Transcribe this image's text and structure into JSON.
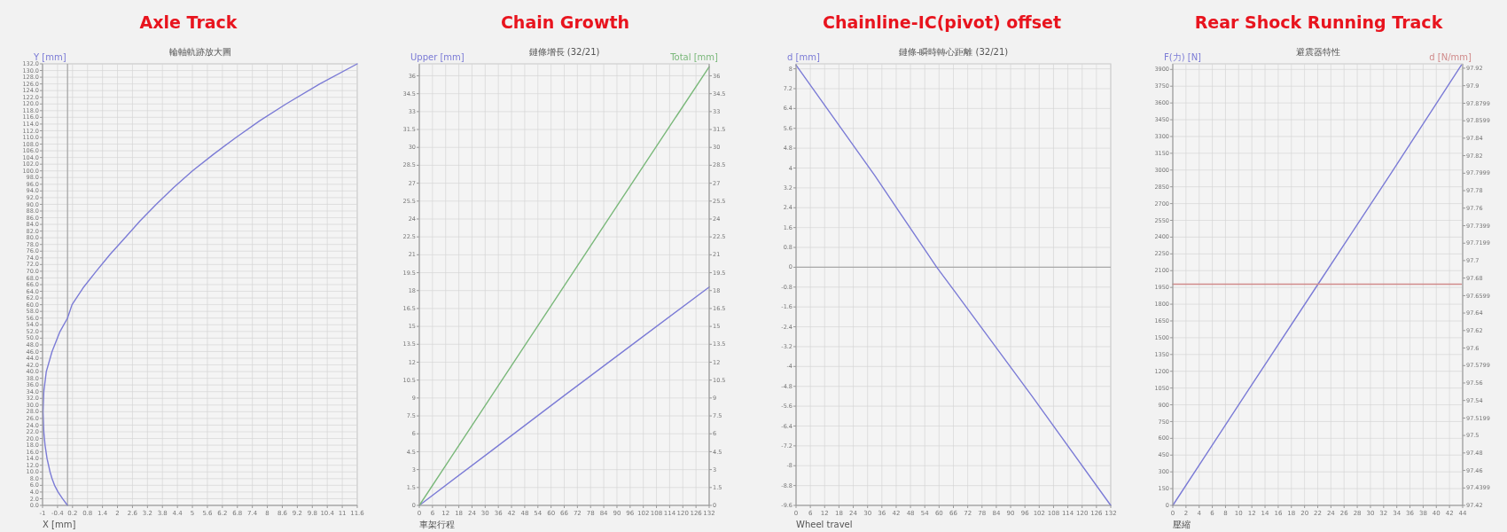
{
  "chart_data": [
    {
      "type": "line",
      "title": "Axle Track",
      "subtitle": "輪軸軌跡放大圖",
      "xlabel": "X [mm]",
      "ylabel": "Y [mm]",
      "grid": true,
      "xlim": [
        -1,
        11.6
      ],
      "xticks": [
        -1,
        -0.4,
        0.2,
        0.8,
        1.4,
        2,
        2.6,
        3.2,
        3.8,
        4.4,
        5,
        5.6,
        6.2,
        6.8,
        7.4,
        8,
        8.6,
        9.2,
        9.8,
        10.4,
        11,
        11.6
      ],
      "ylim": [
        0,
        132
      ],
      "yticks": [
        {
          "value": 0,
          "label": "0.0"
        },
        {
          "value": 2,
          "label": "2.0"
        },
        {
          "value": 4,
          "label": "4.0"
        },
        {
          "value": 6,
          "label": "6.0"
        },
        {
          "value": 8,
          "label": "8.0"
        },
        {
          "value": 10,
          "label": "10.0"
        },
        {
          "value": 12,
          "label": "12.0"
        },
        {
          "value": 14,
          "label": "14.0"
        },
        {
          "value": 16,
          "label": "16.0"
        },
        {
          "value": 18,
          "label": "18.0"
        },
        {
          "value": 20,
          "label": "20.0"
        },
        {
          "value": 22,
          "label": "22.0"
        },
        {
          "value": 24,
          "label": "24.0"
        },
        {
          "value": 26,
          "label": "26.0"
        },
        {
          "value": 28,
          "label": "28.0"
        },
        {
          "value": 30,
          "label": "30.0"
        },
        {
          "value": 32,
          "label": "32.0"
        },
        {
          "value": 34,
          "label": "34.0"
        },
        {
          "value": 36,
          "label": "36.0"
        },
        {
          "value": 38,
          "label": "38.0"
        },
        {
          "value": 40,
          "label": "40.0"
        },
        {
          "value": 42,
          "label": "42.0"
        },
        {
          "value": 44,
          "label": "44.0"
        },
        {
          "value": 46,
          "label": "46.0"
        },
        {
          "value": 48,
          "label": "48.0"
        },
        {
          "value": 50,
          "label": "50.0"
        },
        {
          "value": 52,
          "label": "52.0"
        },
        {
          "value": 54,
          "label": "54.0"
        },
        {
          "value": 56,
          "label": "56.0"
        },
        {
          "value": 58,
          "label": "58.0"
        },
        {
          "value": 60,
          "label": "60.0"
        },
        {
          "value": 62,
          "label": "62.0"
        },
        {
          "value": 64,
          "label": "64.0"
        },
        {
          "value": 66,
          "label": "66.0"
        },
        {
          "value": 68,
          "label": "68.0"
        },
        {
          "value": 70,
          "label": "70.0"
        },
        {
          "value": 72,
          "label": "72.0"
        },
        {
          "value": 74,
          "label": "74.0"
        },
        {
          "value": 76,
          "label": "76.0"
        },
        {
          "value": 78,
          "label": "78.0"
        },
        {
          "value": 80,
          "label": "80.0"
        },
        {
          "value": 82,
          "label": "82.0"
        },
        {
          "value": 84,
          "label": "84.0"
        },
        {
          "value": 86,
          "label": "86.0"
        },
        {
          "value": 88,
          "label": "88.0"
        },
        {
          "value": 90,
          "label": "90.0"
        },
        {
          "value": 92,
          "label": "92.0"
        },
        {
          "value": 94,
          "label": "94.0"
        },
        {
          "value": 96,
          "label": "96.0"
        },
        {
          "value": 98,
          "label": "98.0"
        },
        {
          "value": 100,
          "label": "100.0"
        },
        {
          "value": 102,
          "label": "102.0"
        },
        {
          "value": 104,
          "label": "104.0"
        },
        {
          "value": 106,
          "label": "106.0"
        },
        {
          "value": 108,
          "label": "108.0"
        },
        {
          "value": 110,
          "label": "110.0"
        },
        {
          "value": 112,
          "label": "112.0"
        },
        {
          "value": 114,
          "label": "114.0"
        },
        {
          "value": 116,
          "label": "116.0"
        },
        {
          "value": 118,
          "label": "118.0"
        },
        {
          "value": 120,
          "label": "120.0"
        },
        {
          "value": 122,
          "label": "122.0"
        },
        {
          "value": 124,
          "label": "124.0"
        },
        {
          "value": 126,
          "label": "126.0"
        },
        {
          "value": 128,
          "label": "128.0"
        },
        {
          "value": 130,
          "label": "130.0"
        },
        {
          "value": 132,
          "label": "132.0"
        }
      ],
      "ref_lines": [
        {
          "axis": "x",
          "value": 0,
          "color": "#a8a8a8"
        }
      ],
      "series": [
        {
          "color": "#7b7bd6",
          "x": [
            0,
            -0.2,
            -0.38,
            -0.52,
            -0.62,
            -0.7,
            -0.82,
            -0.9,
            -0.95,
            -0.98,
            -0.95,
            -0.85,
            -0.62,
            -0.3,
            0,
            0.18,
            0.62,
            1.15,
            1.7,
            2.3,
            2.9,
            3.55,
            4.25,
            5.0,
            5.85,
            6.75,
            7.7,
            8.75,
            10.1,
            11.6
          ],
          "values": [
            0,
            2,
            4,
            6,
            8,
            10,
            14,
            18,
            22,
            28,
            34,
            40,
            46,
            52,
            56,
            60,
            65,
            70,
            75,
            80,
            85,
            90,
            95,
            100,
            105,
            110,
            115,
            120,
            126,
            132
          ]
        }
      ]
    },
    {
      "type": "line",
      "title": "Chain Growth",
      "subtitle": "鏈條增長 (32/21)",
      "xlabel": "車架行程",
      "ylabel": "Upper [mm]",
      "y2label": "Total [mm]",
      "grid": true,
      "xlim": [
        0,
        132
      ],
      "xticks": [
        0,
        6,
        12,
        18,
        24,
        30,
        36,
        42,
        48,
        54,
        60,
        66,
        72,
        78,
        84,
        90,
        96,
        102,
        108,
        114,
        120,
        126,
        132
      ],
      "ylim": [
        0,
        37
      ],
      "yticks": [
        0,
        1.5,
        3,
        4.5,
        6,
        7.5,
        9,
        10.5,
        12,
        13.5,
        15,
        16.5,
        18,
        19.5,
        21,
        22.5,
        24,
        25.5,
        27,
        28.5,
        30,
        31.5,
        33,
        34.5,
        36
      ],
      "y2lim": [
        0,
        37
      ],
      "y2ticks": [
        0,
        1.5,
        3,
        4.5,
        6,
        7.5,
        9,
        10.5,
        12,
        13.5,
        15,
        16.5,
        18,
        19.5,
        21,
        22.5,
        24,
        25.5,
        27,
        28.5,
        30,
        31.5,
        33,
        34.5,
        36
      ],
      "series": [
        {
          "color": "#7b7bd6",
          "x": [
            0,
            33,
            66,
            99,
            132
          ],
          "values": [
            0,
            4.6,
            9.2,
            13.75,
            18.3
          ]
        },
        {
          "color": "#7ab87a",
          "axis": "y2",
          "x": [
            0,
            33,
            66,
            99,
            132
          ],
          "values": [
            0,
            9.2,
            18.4,
            27.6,
            36.75
          ]
        }
      ]
    },
    {
      "type": "line",
      "title": "Chainline-IC(pivot) offset",
      "subtitle": "鏈條-瞬時轉心距離 (32/21)",
      "xlabel": "Wheel travel",
      "ylabel": "d [mm]",
      "grid": true,
      "xlim": [
        0,
        132
      ],
      "xticks": [
        0,
        6,
        12,
        18,
        24,
        30,
        36,
        42,
        48,
        54,
        60,
        66,
        72,
        78,
        84,
        90,
        96,
        102,
        108,
        114,
        120,
        126,
        132
      ],
      "ylim": [
        -9.6,
        8.2
      ],
      "yticks": [
        -9.6,
        -8.8,
        -8,
        -7.2,
        -6.4,
        -5.6,
        -4.8,
        -4,
        -3.2,
        -2.4,
        -1.6,
        -0.8,
        0,
        0.8,
        1.6,
        2.4,
        3.2,
        4,
        4.8,
        5.6,
        6.4,
        7.2,
        8
      ],
      "ref_lines": [
        {
          "axis": "y",
          "value": 0,
          "color": "#a8a8a8"
        }
      ],
      "series": [
        {
          "color": "#7b7bd6",
          "x": [
            0,
            33,
            59,
            66,
            99,
            132
          ],
          "values": [
            8.15,
            3.7,
            0,
            -0.9,
            -5.2,
            -9.6
          ]
        }
      ]
    },
    {
      "type": "line",
      "title": "Rear Shock Running Track",
      "subtitle": "避震器特性",
      "xlabel": "壓縮",
      "ylabel": "F(力) [N]",
      "y2label": "d [N/mm]",
      "grid": true,
      "xlim": [
        0,
        44
      ],
      "xticks": [
        0,
        2,
        4,
        6,
        8,
        10,
        12,
        14,
        16,
        18,
        20,
        22,
        24,
        26,
        28,
        30,
        32,
        34,
        36,
        38,
        40,
        42,
        44
      ],
      "ylim": [
        0,
        3950
      ],
      "yticks": [
        0,
        150,
        300,
        450,
        600,
        750,
        900,
        1050,
        1200,
        1350,
        1500,
        1650,
        1800,
        1950,
        2100,
        2250,
        2400,
        2550,
        2700,
        2850,
        3000,
        3150,
        3300,
        3450,
        3600,
        3750,
        3900
      ],
      "y2lim": [
        97.42,
        97.925
      ],
      "y2ticks": [
        97.42,
        97.4399,
        97.46,
        97.48,
        97.5,
        97.5199,
        97.54,
        97.56,
        97.5799,
        97.6,
        97.62,
        97.64,
        97.6599,
        97.68,
        97.7,
        97.7199,
        97.7399,
        97.76,
        97.78,
        97.7999,
        97.82,
        97.84,
        97.8599,
        97.8799,
        97.9,
        97.92
      ],
      "series": [
        {
          "color": "#7b7bd6",
          "x": [
            0,
            11,
            22,
            33,
            43.8
          ],
          "values": [
            0,
            990,
            1975,
            2960,
            3940
          ]
        },
        {
          "color": "#d08a8a",
          "axis": "y2",
          "x": [
            0,
            43.8
          ],
          "values": [
            97.673,
            97.673
          ]
        }
      ]
    }
  ]
}
